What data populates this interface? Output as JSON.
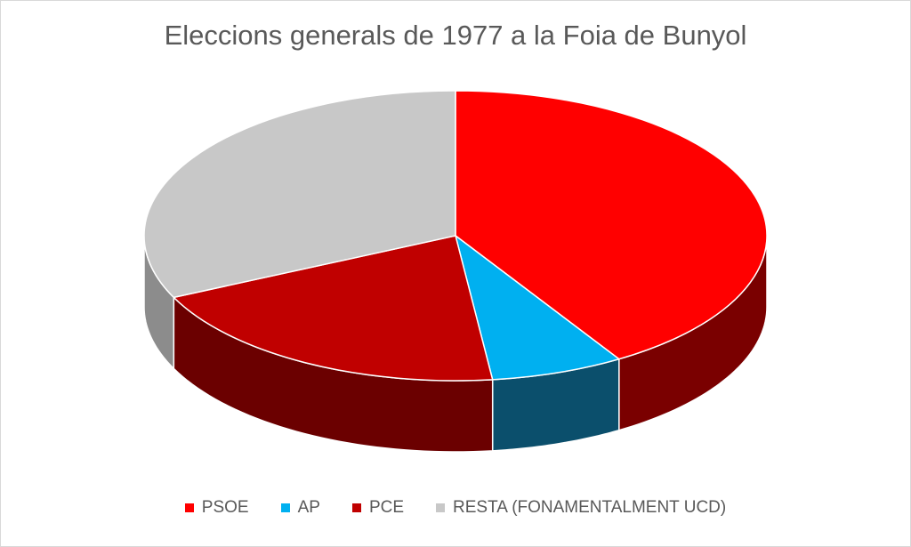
{
  "chart_data": {
    "type": "pie",
    "variant": "3d",
    "title": "Eleccions generals de 1977 a la Foia de Bunyol",
    "slices": [
      {
        "label": "PSOE",
        "value": 41.2,
        "color": "#FF0000",
        "side_color": "#7A0000"
      },
      {
        "label": "AP",
        "value": 6.9,
        "color": "#00B0F0",
        "side_color": "#0B4F6C"
      },
      {
        "label": "PCE",
        "value": 19.9,
        "color": "#C00000",
        "side_color": "#6B0000"
      },
      {
        "label": "RESTA (FONAMENTALMENT UCD)",
        "value": 32.0,
        "color": "#C8C8C8",
        "side_color": "#8C8C8C"
      }
    ],
    "legend_position": "bottom",
    "start": "top",
    "direction": "clockwise"
  }
}
